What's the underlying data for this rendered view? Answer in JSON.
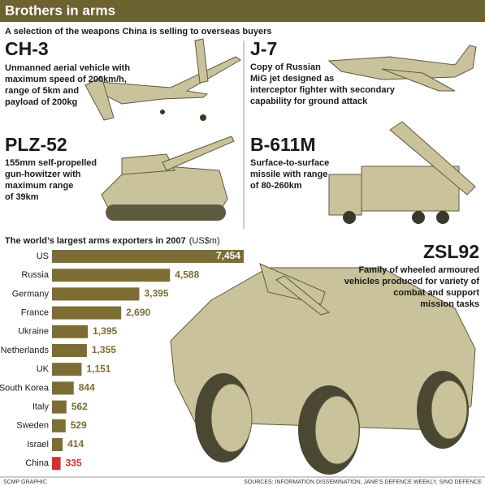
{
  "header": {
    "title": "Brothers in arms",
    "subtitle": "A selection of the weapons China is selling to overseas buyers"
  },
  "weapons": [
    {
      "name": "CH-3",
      "lines": [
        "Unmanned aerial vehicle with",
        "maximum speed of 200km/h,",
        "range of 5km and",
        "payload of 200kg"
      ]
    },
    {
      "name": "J-7",
      "lines": [
        "Copy of Russian",
        "MiG jet designed as",
        "interceptor fighter with secondary",
        "capability for ground attack"
      ]
    },
    {
      "name": "PLZ-52",
      "lines": [
        "155mm self-propelled",
        "gun-howitzer with",
        "maximum range",
        "of 39km"
      ]
    },
    {
      "name": "B-611M",
      "lines": [
        "Surface-to-surface",
        "missile with range",
        "of 80-260km"
      ]
    },
    {
      "name": "ZSL92",
      "lines": [
        "Family of wheeled armoured",
        "vehicles produced for variety of",
        "combat and support",
        "mission tasks"
      ]
    }
  ],
  "chart_data": {
    "type": "bar",
    "title": "The world’s largest arms exporters in 2007",
    "unit": "(US$m)",
    "categories": [
      "US",
      "Russia",
      "Germany",
      "France",
      "Ukraine",
      "Netherlands",
      "UK",
      "South Korea",
      "Italy",
      "Sweden",
      "Israel",
      "China"
    ],
    "values": [
      7454,
      4588,
      3395,
      2690,
      1395,
      1355,
      1151,
      844,
      562,
      529,
      414,
      335
    ],
    "value_labels": [
      "7,454",
      "4,588",
      "3,395",
      "2,690",
      "1,395",
      "1,355",
      "1,151",
      "844",
      "562",
      "529",
      "414",
      "335"
    ],
    "color": "#7b6d34",
    "highlight": {
      "category": "China",
      "color": "#d0312d"
    }
  },
  "footer": {
    "credit": "SCMP GRAPHIC",
    "sources": "SOURCES: INFORMATION DISSEMINATION, JANE'S DEFENCE WEEKLY, SINO DEFENCE"
  }
}
